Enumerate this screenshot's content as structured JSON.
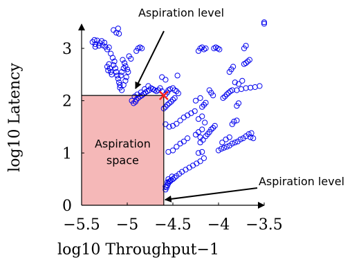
{
  "chart_data": {
    "type": "scatter",
    "xlabel": "log10 Throughput−1",
    "ylabel": "log10 Latency",
    "xlim": [
      -5.5,
      -3.5
    ],
    "ylim": [
      0,
      3.5
    ],
    "x_ticks": [
      -5.5,
      -5,
      -4.5,
      -4,
      -3.5
    ],
    "x_tick_labels": [
      "−5.5",
      "−5",
      "−4.5",
      "−4",
      "−3.5"
    ],
    "y_ticks": [
      0,
      1,
      2,
      3
    ],
    "y_tick_labels": [
      "0",
      "1",
      "2",
      "3"
    ],
    "grid": false,
    "colors": {
      "points": "#0000ee",
      "marker": "#ff2222",
      "region_fill": "#f5b8b8"
    },
    "aspiration_level": {
      "x": -4.6,
      "y": 2.1
    },
    "aspiration_region": {
      "x": [
        -5.5,
        -4.6
      ],
      "y": [
        0,
        2.1
      ]
    },
    "annotations": {
      "top": "Aspiration level",
      "right": "Aspiration level",
      "region_line1": "Aspiration",
      "region_line2": "space"
    },
    "series": [
      {
        "marker": "open-circle",
        "points": [
          [
            -5.38,
            3.12
          ],
          [
            -5.35,
            3.08
          ],
          [
            -5.33,
            3.15
          ],
          [
            -5.31,
            3.05
          ],
          [
            -5.3,
            3.1
          ],
          [
            -5.28,
            3.14
          ],
          [
            -5.27,
            3.06
          ],
          [
            -5.25,
            3.11
          ],
          [
            -5.24,
            3.03
          ],
          [
            -5.22,
            2.98
          ],
          [
            -5.35,
            3.03
          ],
          [
            -5.36,
            3.16
          ],
          [
            -5.2,
            3.02
          ],
          [
            -5.15,
            3.35
          ],
          [
            -5.12,
            3.3
          ],
          [
            -5.1,
            3.38
          ],
          [
            -5.09,
            3.28
          ],
          [
            -5.18,
            2.9
          ],
          [
            -5.16,
            2.82
          ],
          [
            -5.14,
            2.75
          ],
          [
            -5.15,
            2.68
          ],
          [
            -5.13,
            2.62
          ],
          [
            -5.12,
            2.55
          ],
          [
            -5.11,
            2.48
          ],
          [
            -5.1,
            2.42
          ],
          [
            -5.09,
            2.35
          ],
          [
            -5.08,
            2.3
          ],
          [
            -5.2,
            2.7
          ],
          [
            -5.22,
            2.65
          ],
          [
            -5.21,
            2.58
          ],
          [
            -5.19,
            2.62
          ],
          [
            -5.18,
            2.55
          ],
          [
            -5.17,
            2.5
          ],
          [
            -5.05,
            2.78
          ],
          [
            -5.03,
            2.72
          ],
          [
            -5.02,
            2.66
          ],
          [
            -5.0,
            2.6
          ],
          [
            -4.99,
            2.55
          ],
          [
            -5.04,
            2.62
          ],
          [
            -5.06,
            2.55
          ],
          [
            -5.07,
            2.48
          ],
          [
            -5.08,
            2.25
          ],
          [
            -5.06,
            2.2
          ],
          [
            -5.04,
            2.3
          ],
          [
            -5.02,
            2.38
          ],
          [
            -5.01,
            2.45
          ],
          [
            -4.98,
            2.85
          ],
          [
            -4.96,
            2.8
          ],
          [
            -4.95,
            2.0
          ],
          [
            -4.93,
            1.95
          ],
          [
            -4.91,
            1.98
          ],
          [
            -4.9,
            2.02
          ],
          [
            -4.88,
            2.05
          ],
          [
            -4.86,
            2.08
          ],
          [
            -4.84,
            2.1
          ],
          [
            -4.82,
            2.13
          ],
          [
            -4.8,
            2.16
          ],
          [
            -4.78,
            2.18
          ],
          [
            -4.76,
            2.2
          ],
          [
            -4.74,
            2.24
          ],
          [
            -4.72,
            2.22
          ],
          [
            -4.7,
            2.2
          ],
          [
            -4.68,
            2.18
          ],
          [
            -4.66,
            2.2
          ],
          [
            -4.64,
            2.24
          ],
          [
            -4.62,
            2.18
          ],
          [
            -4.92,
            2.08
          ],
          [
            -4.89,
            2.12
          ],
          [
            -4.85,
            2.16
          ],
          [
            -4.81,
            2.22
          ],
          [
            -4.77,
            2.28
          ],
          [
            -4.9,
            2.95
          ],
          [
            -4.88,
            3.0
          ],
          [
            -4.86,
            3.02
          ],
          [
            -4.84,
            3.0
          ],
          [
            -4.58,
            2.4
          ],
          [
            -4.62,
            2.45
          ],
          [
            -4.45,
            2.48
          ],
          [
            -4.58,
            2.12
          ],
          [
            -4.56,
            2.16
          ],
          [
            -4.55,
            2.2
          ],
          [
            -4.53,
            2.22
          ],
          [
            -4.5,
            2.24
          ],
          [
            -4.48,
            2.2
          ],
          [
            -4.46,
            2.18
          ],
          [
            -4.44,
            2.14
          ],
          [
            -4.6,
            1.85
          ],
          [
            -4.58,
            1.88
          ],
          [
            -4.56,
            1.92
          ],
          [
            -4.54,
            1.95
          ],
          [
            -4.52,
            1.98
          ],
          [
            -4.5,
            2.02
          ],
          [
            -4.48,
            2.05
          ],
          [
            -4.58,
            1.55
          ],
          [
            -4.54,
            1.5
          ],
          [
            -4.5,
            1.52
          ],
          [
            -4.46,
            1.56
          ],
          [
            -4.42,
            1.62
          ],
          [
            -4.38,
            1.68
          ],
          [
            -4.34,
            1.72
          ],
          [
            -4.3,
            1.76
          ],
          [
            -4.26,
            1.8
          ],
          [
            -4.55,
            1.02
          ],
          [
            -4.5,
            1.05
          ],
          [
            -4.46,
            1.12
          ],
          [
            -4.42,
            1.18
          ],
          [
            -4.38,
            1.22
          ],
          [
            -4.34,
            1.28
          ],
          [
            -4.58,
            0.3
          ],
          [
            -4.57,
            0.34
          ],
          [
            -4.56,
            0.38
          ],
          [
            -4.55,
            0.42
          ],
          [
            -4.54,
            0.45
          ],
          [
            -4.52,
            0.48
          ],
          [
            -4.5,
            0.5
          ],
          [
            -4.48,
            0.53
          ],
          [
            -4.46,
            0.56
          ],
          [
            -4.43,
            0.6
          ],
          [
            -4.4,
            0.64
          ],
          [
            -4.36,
            0.68
          ],
          [
            -4.32,
            0.72
          ],
          [
            -4.28,
            0.76
          ],
          [
            -4.24,
            0.8
          ],
          [
            -4.2,
            0.84
          ],
          [
            -4.16,
            0.9
          ],
          [
            -4.58,
            0.36
          ],
          [
            -4.56,
            0.44
          ],
          [
            -4.55,
            0.5
          ],
          [
            -4.53,
            0.46
          ],
          [
            -4.51,
            0.55
          ],
          [
            -4.2,
            1.2
          ],
          [
            -4.17,
            1.25
          ],
          [
            -4.14,
            1.32
          ],
          [
            -4.12,
            1.36
          ],
          [
            -4.1,
            1.4
          ],
          [
            -4.08,
            1.45
          ],
          [
            -4.06,
            1.48
          ],
          [
            -4.04,
            1.52
          ],
          [
            -4.25,
            1.35
          ],
          [
            -4.22,
            1.4
          ],
          [
            -4.2,
            1.3
          ],
          [
            -4.18,
            1.45
          ],
          [
            -4.22,
            1.0
          ],
          [
            -4.18,
            1.02
          ],
          [
            -4.22,
            1.65
          ],
          [
            -4.18,
            1.7
          ],
          [
            -4.15,
            1.58
          ],
          [
            -4.18,
            1.88
          ],
          [
            -4.16,
            1.92
          ],
          [
            -4.14,
            1.96
          ],
          [
            -4.25,
            2.0
          ],
          [
            -4.2,
            2.05
          ],
          [
            -4.22,
            2.95
          ],
          [
            -4.2,
            3.0
          ],
          [
            -4.18,
            3.02
          ],
          [
            -4.16,
            2.98
          ],
          [
            -4.14,
            3.0
          ],
          [
            -4.05,
            3.0
          ],
          [
            -4.03,
            3.02
          ],
          [
            -4.01,
            3.0
          ],
          [
            -3.99,
            2.98
          ],
          [
            -4.1,
            2.2
          ],
          [
            -4.08,
            2.15
          ],
          [
            -4.06,
            2.1
          ],
          [
            -4.0,
            1.05
          ],
          [
            -3.97,
            1.08
          ],
          [
            -3.94,
            1.1
          ],
          [
            -3.91,
            1.12
          ],
          [
            -3.88,
            1.14
          ],
          [
            -3.85,
            1.18
          ],
          [
            -3.82,
            1.2
          ],
          [
            -3.79,
            1.22
          ],
          [
            -3.76,
            1.26
          ],
          [
            -3.73,
            1.28
          ],
          [
            -3.7,
            1.32
          ],
          [
            -3.67,
            1.36
          ],
          [
            -3.64,
            1.38
          ],
          [
            -3.96,
            1.2
          ],
          [
            -3.92,
            1.26
          ],
          [
            -3.88,
            1.3
          ],
          [
            -3.95,
            2.05
          ],
          [
            -3.93,
            2.08
          ],
          [
            -3.91,
            2.12
          ],
          [
            -3.89,
            2.15
          ],
          [
            -3.87,
            2.18
          ],
          [
            -3.85,
            2.2
          ],
          [
            -3.8,
            2.2
          ],
          [
            -3.75,
            2.22
          ],
          [
            -3.7,
            2.24
          ],
          [
            -3.65,
            2.25
          ],
          [
            -3.6,
            2.26
          ],
          [
            -3.55,
            2.28
          ],
          [
            -3.88,
            2.55
          ],
          [
            -3.86,
            2.6
          ],
          [
            -3.84,
            2.65
          ],
          [
            -3.82,
            2.35
          ],
          [
            -3.78,
            2.32
          ],
          [
            -3.74,
            2.38
          ],
          [
            -3.85,
            1.55
          ],
          [
            -3.83,
            1.6
          ],
          [
            -3.8,
            1.62
          ],
          [
            -3.8,
            1.9
          ],
          [
            -3.78,
            1.95
          ],
          [
            -3.72,
            2.7
          ],
          [
            -3.7,
            2.72
          ],
          [
            -3.68,
            2.75
          ],
          [
            -3.66,
            2.78
          ],
          [
            -3.7,
            3.05
          ],
          [
            -3.72,
            3.0
          ],
          [
            -3.62,
            1.28
          ],
          [
            -3.65,
            1.3
          ],
          [
            -3.5,
            3.5
          ],
          [
            -3.5,
            3.47
          ]
        ]
      }
    ]
  }
}
